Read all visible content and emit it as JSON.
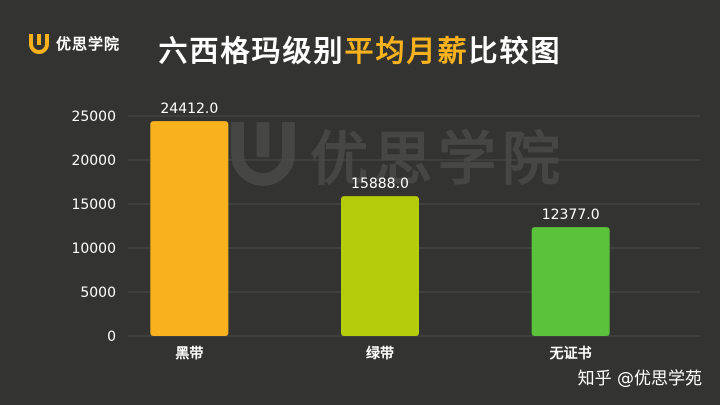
{
  "brand": {
    "name": "优思学院",
    "icon": "u-logo-icon"
  },
  "title": {
    "part1": "六西格玛级别",
    "part2": "平均月薪",
    "part3": "比较图"
  },
  "colors": {
    "background": "#333432",
    "accent": "#f7b21d",
    "grid": "#4a4b48"
  },
  "chart_data": {
    "type": "bar",
    "title": "六西格玛级别平均月薪比较图",
    "categories": [
      "黑带",
      "绿带",
      "无证书"
    ],
    "values": [
      24412.0,
      15888.0,
      12377.0
    ],
    "value_labels": [
      "24412.0",
      "15888.0",
      "12377.0"
    ],
    "bar_colors": [
      "#f7b21d",
      "#b4cc0a",
      "#5bc23c"
    ],
    "y_ticks": [
      "0",
      "5000",
      "10000",
      "15000",
      "20000",
      "25000"
    ],
    "ylim": [
      0,
      25000
    ],
    "grid": true,
    "legend": "none",
    "xlabel": "",
    "ylabel": ""
  },
  "footer": "知乎 @优思学苑"
}
